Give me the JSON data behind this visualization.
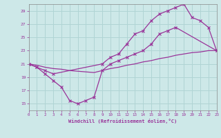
{
  "xlabel": "Windchill (Refroidissement éolien,°C)",
  "bg_color": "#cde8e8",
  "line_color": "#993399",
  "grid_color": "#b0d4d4",
  "xmin": 0,
  "xmax": 23,
  "ymin": 14,
  "ymax": 30,
  "yticks": [
    15,
    17,
    19,
    21,
    23,
    25,
    27,
    29
  ],
  "xticks": [
    0,
    1,
    2,
    3,
    4,
    5,
    6,
    7,
    8,
    9,
    10,
    11,
    12,
    13,
    14,
    15,
    16,
    17,
    18,
    19,
    20,
    21,
    22,
    23
  ],
  "line_upper_x": [
    0,
    1,
    2,
    3,
    9,
    10,
    11,
    12,
    13,
    14,
    15,
    16,
    17,
    18,
    19,
    20,
    21,
    22,
    23
  ],
  "line_upper_y": [
    21,
    20.5,
    20,
    19.5,
    21,
    22,
    22.5,
    24,
    25.5,
    26,
    27.5,
    28.5,
    29,
    29.5,
    30,
    28,
    27.5,
    26.5,
    23
  ],
  "line_lower_x": [
    0,
    1,
    2,
    3,
    4,
    5,
    6,
    7,
    8,
    9,
    10,
    11,
    12,
    13,
    14,
    15,
    16,
    17,
    18,
    23
  ],
  "line_lower_y": [
    21,
    20.5,
    19.5,
    18.5,
    17.5,
    15.5,
    15,
    15.5,
    16,
    20,
    21,
    21.5,
    22,
    22.5,
    23,
    24,
    25.5,
    26,
    26.5,
    23
  ],
  "line_mid_x": [
    0,
    1,
    2,
    3,
    4,
    5,
    6,
    7,
    8,
    9,
    10,
    11,
    12,
    13,
    14,
    15,
    16,
    17,
    18,
    19,
    20,
    21,
    22,
    23
  ],
  "line_mid_y": [
    21,
    20.8,
    20.5,
    20.3,
    20.2,
    20.0,
    19.9,
    19.8,
    19.7,
    20.0,
    20.3,
    20.5,
    20.8,
    21.0,
    21.3,
    21.5,
    21.8,
    22.0,
    22.3,
    22.5,
    22.7,
    22.8,
    23.0,
    23.0
  ]
}
